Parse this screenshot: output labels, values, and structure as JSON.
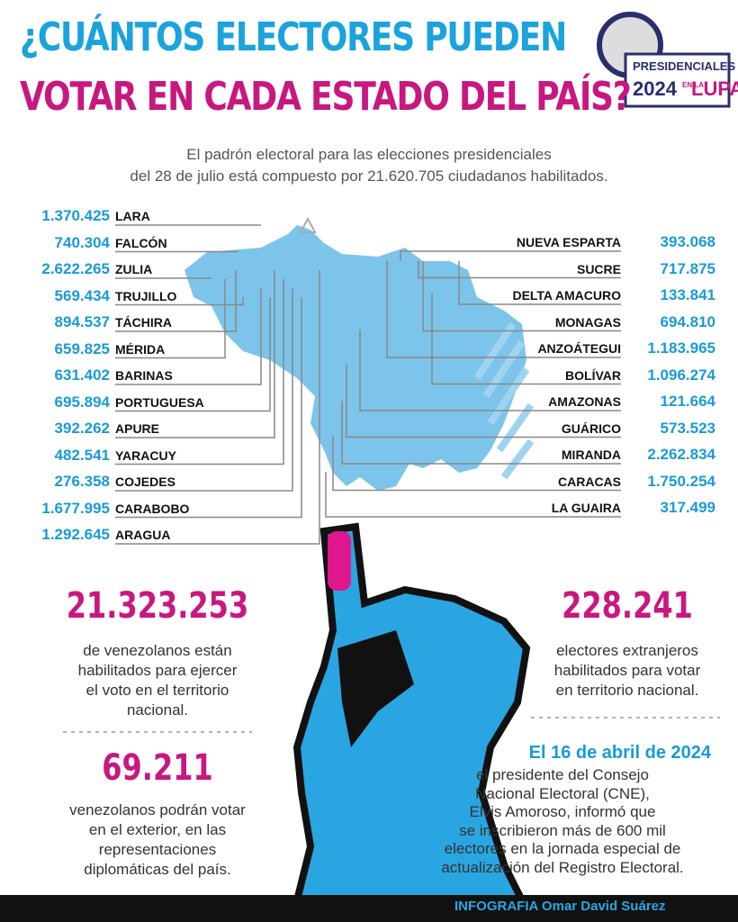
{
  "header": {
    "title_line1": "¿CUÁNTOS ELECTORES PUEDEN",
    "title_line2": "VOTAR EN CADA ESTADO DEL PAÍS?",
    "logo": {
      "line1": "PRESIDENCIALES",
      "year": "2024",
      "en_la": "EN LA",
      "lupa": "LUPA"
    }
  },
  "subtitle": [
    "El padrón electoral para las elecciones presidenciales",
    "del 28 de julio está compuesto por 21.620.705 ciudadanos habilitados."
  ],
  "left_states": [
    {
      "value": "1.370.425",
      "name": "LARA"
    },
    {
      "value": "740.304",
      "name": "FALCÓN"
    },
    {
      "value": "2.622.265",
      "name": "ZULIA"
    },
    {
      "value": "569.434",
      "name": "TRUJILLO"
    },
    {
      "value": "894.537",
      "name": "TÁCHIRA"
    },
    {
      "value": "659.825",
      "name": "MÉRIDA"
    },
    {
      "value": "631.402",
      "name": "BARINAS"
    },
    {
      "value": "695.894",
      "name": "PORTUGUESA"
    },
    {
      "value": "392.262",
      "name": "APURE"
    },
    {
      "value": "482.541",
      "name": "YARACUY"
    },
    {
      "value": "276.358",
      "name": "COJEDES"
    },
    {
      "value": "1.677.995",
      "name": "CARABOBO"
    },
    {
      "value": "1.292.645",
      "name": "ARAGUA"
    }
  ],
  "right_states": [
    {
      "name": "NUEVA ESPARTA",
      "value": "393.068"
    },
    {
      "name": "SUCRE",
      "value": "717.875"
    },
    {
      "name": "DELTA AMACURO",
      "value": "133.841"
    },
    {
      "name": "MONAGAS",
      "value": "694.810"
    },
    {
      "name": "ANZOÁTEGUI",
      "value": "1.183.965"
    },
    {
      "name": "BOLÍVAR",
      "value": "1.096.274"
    },
    {
      "name": "AMAZONAS",
      "value": "121.664"
    },
    {
      "name": "GUÁRICO",
      "value": "573.523"
    },
    {
      "name": "MIRANDA",
      "value": "2.262.834"
    },
    {
      "name": "CARACAS",
      "value": "1.750.254"
    },
    {
      "name": "LA GUAIRA",
      "value": "317.499"
    }
  ],
  "stats": {
    "national": {
      "value": "21.323.253",
      "lines": [
        "de venezolanos están",
        "habilitados para ejercer",
        "el voto en el territorio",
        "nacional."
      ]
    },
    "foreign": {
      "value": "228.241",
      "lines": [
        "electores extranjeros",
        "habilitados para votar",
        "en territorio nacional."
      ]
    },
    "abroad": {
      "value": "69.211",
      "lines": [
        "venezolanos podrán votar",
        "en el exterior, en las",
        "representaciones",
        "diplomáticas del país."
      ]
    },
    "note": {
      "heading": "El 16 de abril de 2024",
      "lines": [
        "el presidente del Consejo",
        "Nacional Electoral (CNE),",
        "Elvis Amoroso, informó que",
        "se inscribieron más de 600 mil",
        "electores en la jornada especial de",
        "actualización del Registro Electoral."
      ]
    }
  },
  "footer": "INFOGRAFIA Omar David Suárez"
}
